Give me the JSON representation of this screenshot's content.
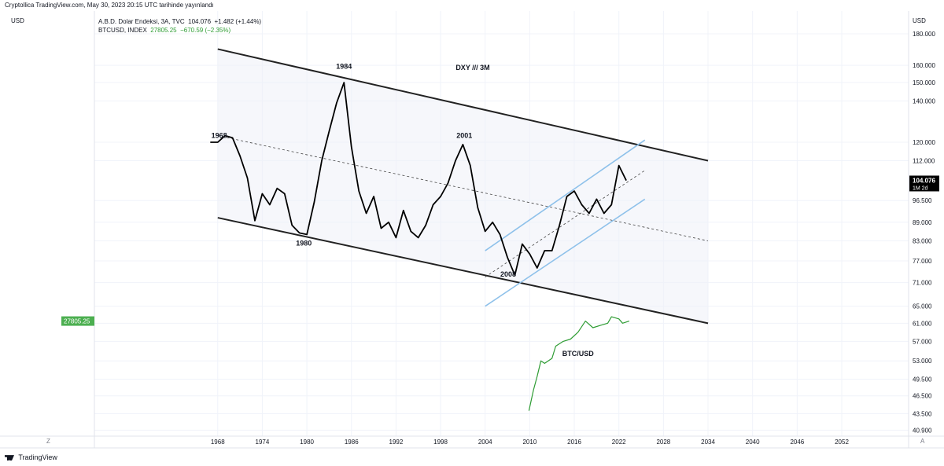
{
  "header": {
    "publisher": "Cryptollica TradingView.com, May 30, 2023 20:15 UTC tarihinde yayınlandı",
    "currency_left": "USD",
    "currency_right": "USD",
    "series1_line": "A.B.D. Dolar Endeksi, 3A, TVC",
    "series1_value": "104.076",
    "series1_change": "+1.482 (+1.44%)",
    "series2_name": "BTCUSD, INDEX",
    "series2_value": "27805.25",
    "series2_change": "−670.59 (−2.35%)"
  },
  "footer": {
    "brand": "TradingView",
    "z_label": "Z",
    "a_label": "A"
  },
  "colors": {
    "dxy_line": "#000000",
    "btc_line": "#2e9c33",
    "inner_channel": "#8ec1ea",
    "outer_channel": "#222222",
    "btc_badge": "#4caf50",
    "dxy_badge": "#000000"
  },
  "chart_data": {
    "type": "line",
    "title": "DXY /// 3M",
    "x_axis": {
      "ticks": [
        "1968",
        "1974",
        "1980",
        "1986",
        "1992",
        "1998",
        "2004",
        "2010",
        "2016",
        "2022",
        "2028",
        "2034",
        "2040",
        "2046",
        "2052"
      ],
      "range": [
        1951.4,
        2061
      ]
    },
    "y_axis": {
      "scale": "log",
      "ticks": [
        "180.000",
        "160.000",
        "150.000",
        "140.000",
        "120.000",
        "112.000",
        "96.500",
        "89.000",
        "83.000",
        "77.000",
        "71.000",
        "65.000",
        "61.000",
        "57.000",
        "53.000",
        "49.500",
        "46.500",
        "43.500",
        "40.900"
      ],
      "range": [
        40,
        196
      ]
    },
    "price_badges": {
      "dxy": {
        "value": "104.076",
        "sub": "1M 2d"
      },
      "btc": {
        "value": "27805.25"
      }
    },
    "annotations": [
      {
        "text": "1968",
        "x": 1968.2,
        "y": 122
      },
      {
        "text": "1984",
        "x": 1985,
        "y": 158
      },
      {
        "text": "1980",
        "x": 1979.6,
        "y": 81.5
      },
      {
        "text": "2001",
        "x": 2001.2,
        "y": 122
      },
      {
        "text": "2008",
        "x": 2007.1,
        "y": 72.6
      },
      {
        "text": "BTC/USD",
        "x": 2016.5,
        "y": 54
      }
    ],
    "series": [
      {
        "name": "DXY",
        "values": [
          [
            1967,
            120
          ],
          [
            1968,
            120
          ],
          [
            1969,
            123
          ],
          [
            1970,
            122
          ],
          [
            1971,
            114
          ],
          [
            1972,
            105
          ],
          [
            1973,
            89.5
          ],
          [
            1974,
            99
          ],
          [
            1975,
            95
          ],
          [
            1976,
            101
          ],
          [
            1977,
            99
          ],
          [
            1978,
            88
          ],
          [
            1979,
            85.5
          ],
          [
            1980,
            85
          ],
          [
            1981,
            96
          ],
          [
            1982,
            112
          ],
          [
            1983,
            125
          ],
          [
            1984,
            139
          ],
          [
            1985,
            150
          ],
          [
            1986,
            118
          ],
          [
            1987,
            100
          ],
          [
            1988,
            92
          ],
          [
            1989,
            98
          ],
          [
            1990,
            87
          ],
          [
            1991,
            89
          ],
          [
            1992,
            84
          ],
          [
            1993,
            93
          ],
          [
            1994,
            86
          ],
          [
            1995,
            84
          ],
          [
            1996,
            88
          ],
          [
            1997,
            95
          ],
          [
            1998,
            98
          ],
          [
            1999,
            103
          ],
          [
            2000,
            112
          ],
          [
            2001,
            119
          ],
          [
            2002,
            110
          ],
          [
            2003,
            94
          ],
          [
            2004,
            86
          ],
          [
            2005,
            89
          ],
          [
            2006,
            85
          ],
          [
            2007,
            78
          ],
          [
            2008,
            73
          ],
          [
            2009,
            82
          ],
          [
            2010,
            79
          ],
          [
            2011,
            75
          ],
          [
            2012,
            80
          ],
          [
            2013,
            80
          ],
          [
            2014,
            88
          ],
          [
            2015,
            98
          ],
          [
            2016,
            100
          ],
          [
            2017,
            95
          ],
          [
            2018,
            92
          ],
          [
            2019,
            97
          ],
          [
            2020,
            92
          ],
          [
            2021,
            95
          ],
          [
            2022,
            110
          ],
          [
            2023,
            104
          ]
        ]
      },
      {
        "name": "BTC/USD",
        "values": [
          [
            2009.9,
            44
          ],
          [
            2010.5,
            47.5
          ],
          [
            2011,
            50
          ],
          [
            2011.5,
            53
          ],
          [
            2012,
            52.5
          ],
          [
            2013,
            53.5
          ],
          [
            2013.5,
            56
          ],
          [
            2014.5,
            57
          ],
          [
            2015.5,
            57.5
          ],
          [
            2016.5,
            59
          ],
          [
            2017.5,
            61.5
          ],
          [
            2018.5,
            60
          ],
          [
            2019.5,
            60.5
          ],
          [
            2020.5,
            61
          ],
          [
            2021,
            62.5
          ],
          [
            2022,
            62
          ],
          [
            2022.5,
            61
          ],
          [
            2023.4,
            61.5
          ]
        ]
      }
    ],
    "channels": {
      "outer_upper": [
        [
          1968,
          170
        ],
        [
          2034,
          112
        ]
      ],
      "outer_lower": [
        [
          1968,
          90.5
        ],
        [
          2034,
          61
        ]
      ],
      "midline": [
        [
          1968,
          123
        ],
        [
          2034,
          83
        ]
      ],
      "inner_upper": [
        [
          2004,
          80
        ],
        [
          2025.5,
          121
        ]
      ],
      "inner_lower": [
        [
          2004,
          65
        ],
        [
          2025.5,
          97
        ]
      ],
      "inner_mid": [
        [
          2004,
          72.5
        ],
        [
          2025.5,
          108
        ]
      ]
    }
  }
}
